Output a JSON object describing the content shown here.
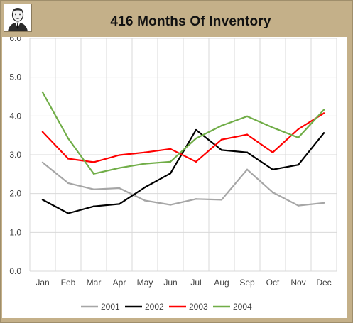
{
  "chart_data": {
    "type": "line",
    "title": "416 Months Of Inventory",
    "xlabel": "",
    "ylabel": "",
    "categories": [
      "Jan",
      "Feb",
      "Mar",
      "Apr",
      "May",
      "Jun",
      "Jul",
      "Aug",
      "Sep",
      "Oct",
      "Nov",
      "Dec"
    ],
    "ylim": [
      0,
      6
    ],
    "yticks": [
      "0.0",
      "1.0",
      "2.0",
      "3.0",
      "4.0",
      "5.0",
      "6.0"
    ],
    "grid": true,
    "legend_position": "bottom",
    "series": [
      {
        "name": "2001",
        "color": "#a6a6a6",
        "values": [
          2.8,
          2.27,
          2.11,
          2.14,
          1.82,
          1.71,
          1.86,
          1.84,
          2.62,
          2.03,
          1.69,
          1.76
        ]
      },
      {
        "name": "2002",
        "color": "#000000",
        "values": [
          1.84,
          1.49,
          1.67,
          1.73,
          2.16,
          2.52,
          3.64,
          3.12,
          3.06,
          2.62,
          2.74,
          3.56
        ]
      },
      {
        "name": "2003",
        "color": "#ff0000",
        "values": [
          3.59,
          2.9,
          2.81,
          2.99,
          3.06,
          3.15,
          2.82,
          3.39,
          3.52,
          3.06,
          3.66,
          4.07
        ]
      },
      {
        "name": "2004",
        "color": "#70ad47",
        "values": [
          4.61,
          3.42,
          2.51,
          2.66,
          2.77,
          2.82,
          3.42,
          3.75,
          3.99,
          3.7,
          3.44,
          4.16
        ]
      }
    ]
  },
  "header": {
    "avatar_icon": "person-portrait-icon"
  },
  "colors": {
    "frame": "#c4b089",
    "gridline": "#d9d9d9",
    "plot_background": "#ffffff"
  }
}
